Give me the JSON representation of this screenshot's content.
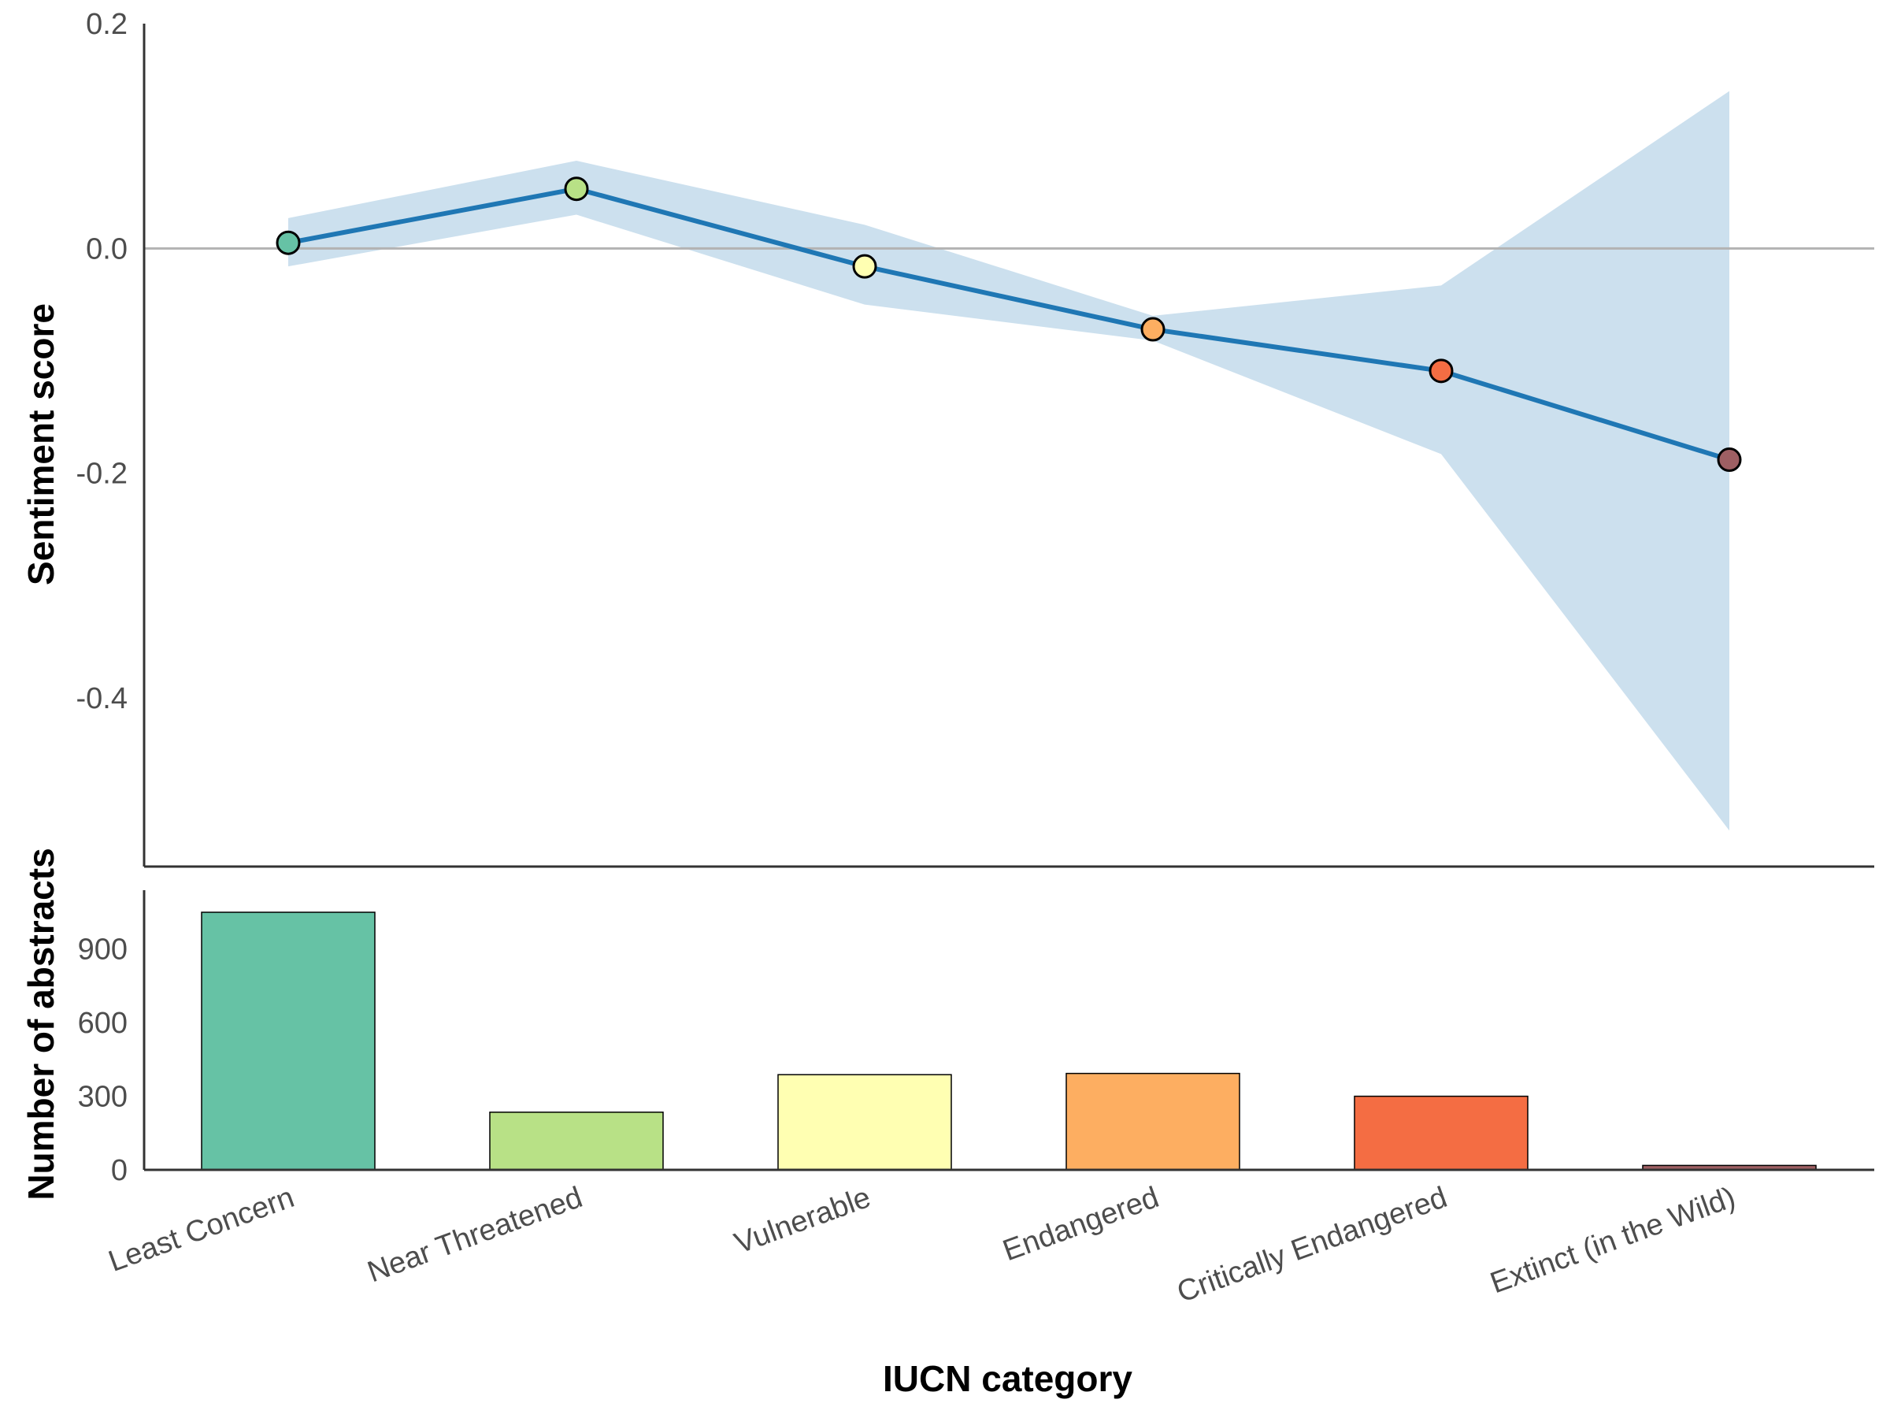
{
  "chart_data": [
    {
      "type": "line",
      "xlabel": "",
      "ylabel": "Sentiment score",
      "ylim": [
        -0.55,
        0.2
      ],
      "yticks": [
        0.2,
        0.0,
        -0.2,
        -0.4
      ],
      "ytick_labels": [
        "0.2",
        "0.0",
        "-0.2",
        "-0.4"
      ],
      "reference_line": 0.0,
      "grid": false,
      "categories": [
        "Least Concern",
        "Near Threatened",
        "Vulnerable",
        "Endangered",
        "Critically Endangered",
        "Extinct (in the Wild)"
      ],
      "series": [
        {
          "values": [
            0.005,
            0.053,
            -0.016,
            -0.072,
            -0.109,
            -0.188
          ],
          "ci_lower": [
            -0.016,
            0.03,
            -0.05,
            -0.082,
            -0.183,
            -0.518
          ],
          "ci_upper": [
            0.027,
            0.078,
            0.021,
            -0.06,
            -0.033,
            0.14
          ]
        }
      ],
      "point_colors": [
        "#66c2a5",
        "#b8e186",
        "#ffffb2",
        "#fdae61",
        "#f46d43",
        "#9e5f63"
      ],
      "line_color": "#1f77b4",
      "band_color": "#cce0ee"
    },
    {
      "type": "bar",
      "xlabel": "IUCN category",
      "ylabel": "Number of abstracts",
      "ylim": [
        0,
        1140
      ],
      "yticks": [
        0,
        300,
        600,
        900
      ],
      "ytick_labels": [
        "0",
        "300",
        "600",
        "900"
      ],
      "grid": false,
      "categories": [
        "Least Concern",
        "Near Threatened",
        "Vulnerable",
        "Endangered",
        "Critically Endangered",
        "Extinct (in the Wild)"
      ],
      "values": [
        1050,
        235,
        388,
        393,
        300,
        18
      ],
      "colors": [
        "#66c2a5",
        "#b8e186",
        "#ffffb2",
        "#fdae61",
        "#f46d43",
        "#9e5f63"
      ]
    }
  ]
}
